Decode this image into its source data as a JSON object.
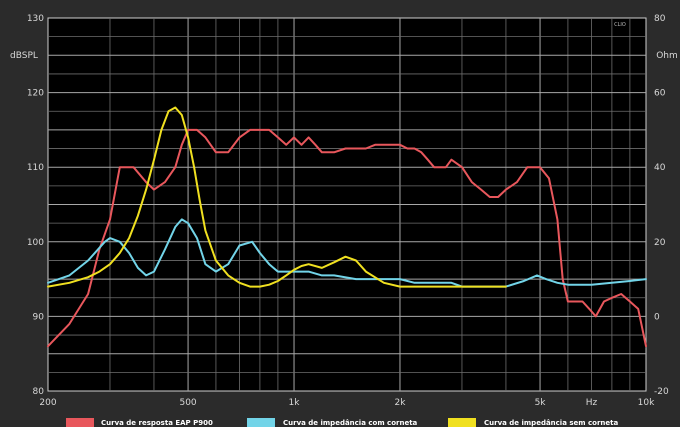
{
  "chart_data": {
    "type": "line",
    "x_scale": "log",
    "xlim": [
      200,
      10000
    ],
    "ylim_left": [
      80,
      130
    ],
    "ylim_right": [
      -20,
      80
    ],
    "left_unit": "dBSPL",
    "right_unit": "Ohm",
    "left_ticks": [
      80,
      90,
      100,
      110,
      120,
      130
    ],
    "left_tick_labels": [
      "80",
      "90",
      "100",
      "110",
      "120",
      "130"
    ],
    "right_ticks": [
      -20,
      0,
      20,
      40,
      60,
      80
    ],
    "right_tick_labels": [
      "-20",
      "0",
      "20",
      "40",
      "60",
      "80"
    ],
    "x_ticks": [
      200,
      500,
      1000,
      2000,
      5000,
      7000,
      10000
    ],
    "x_tick_labels": [
      "200",
      "500",
      "1k",
      "2k",
      "5k",
      "Hz",
      "10k"
    ],
    "grid": true,
    "watermark": "CLIO",
    "series": [
      {
        "name": "Curva de resposta EAP P900",
        "axis": "left",
        "color": "#e8575c",
        "x": [
          200,
          230,
          260,
          280,
          300,
          320,
          350,
          380,
          400,
          430,
          460,
          480,
          500,
          530,
          560,
          600,
          650,
          700,
          750,
          800,
          850,
          900,
          950,
          1000,
          1050,
          1100,
          1150,
          1200,
          1300,
          1400,
          1500,
          1600,
          1700,
          1800,
          1900,
          2000,
          2100,
          2200,
          2300,
          2400,
          2500,
          2700,
          2800,
          3000,
          3200,
          3400,
          3600,
          3800,
          4000,
          4300,
          4600,
          5000,
          5300,
          5600,
          5800,
          6000,
          6300,
          6600,
          6900,
          7200,
          7600,
          8000,
          8500,
          9000,
          9500,
          10000
        ],
        "y": [
          86,
          89,
          93,
          99,
          103,
          110,
          110,
          108,
          107,
          108,
          110,
          113,
          115,
          115,
          114,
          112,
          112,
          114,
          115,
          115,
          115,
          114,
          113,
          114,
          113,
          114,
          113,
          112,
          112,
          112.5,
          112.5,
          112.5,
          113,
          113,
          113,
          113,
          112.5,
          112.5,
          112,
          111,
          110,
          110,
          111,
          110,
          108,
          107,
          106,
          106,
          107,
          108,
          110,
          110,
          108.5,
          103,
          95,
          92,
          92,
          92,
          91,
          90,
          92,
          92.5,
          93,
          92,
          91,
          86
        ]
      },
      {
        "name": "Curva de impedância com corneta",
        "axis": "right",
        "color": "#72d4e8",
        "x": [
          200,
          230,
          260,
          290,
          300,
          320,
          340,
          360,
          380,
          400,
          430,
          460,
          480,
          500,
          530,
          560,
          600,
          650,
          700,
          760,
          800,
          850,
          900,
          950,
          1000,
          1100,
          1200,
          1300,
          1500,
          1700,
          2000,
          2200,
          2500,
          2800,
          3000,
          3300,
          3600,
          4000,
          4500,
          4900,
          5200,
          5600,
          6000,
          6500,
          7000,
          8000,
          9000,
          10000
        ],
        "y": [
          9,
          11,
          15,
          20,
          21,
          20,
          17,
          13,
          11,
          12,
          18,
          24,
          26,
          25,
          21,
          14,
          12,
          14,
          19,
          20,
          17,
          14,
          12,
          12,
          12,
          12,
          11,
          11,
          10,
          10,
          10,
          9,
          9,
          9,
          8,
          8,
          8,
          8,
          9.5,
          11,
          10,
          9,
          8.5,
          8.5,
          8.5,
          9,
          9.5,
          10
        ]
      },
      {
        "name": "Curva de impedância sem corneta",
        "axis": "right",
        "color": "#f0e020",
        "x": [
          200,
          230,
          260,
          280,
          300,
          320,
          340,
          360,
          380,
          400,
          420,
          440,
          460,
          480,
          500,
          520,
          540,
          560,
          600,
          650,
          700,
          750,
          800,
          850,
          900,
          950,
          1000,
          1050,
          1100,
          1200,
          1300,
          1400,
          1500,
          1600,
          1800,
          2000,
          2200,
          2400,
          2700,
          3000,
          3300,
          3500,
          4000
        ],
        "y": [
          8,
          9,
          10.5,
          12,
          14,
          17,
          21,
          27,
          34,
          42,
          50,
          55,
          56,
          54,
          48,
          40,
          31,
          23,
          15,
          11,
          9,
          8,
          8,
          8.5,
          9.5,
          11,
          12.5,
          13.5,
          14,
          13,
          14.5,
          16,
          15,
          12,
          9,
          8,
          8,
          8,
          8,
          8,
          8,
          8,
          8
        ]
      }
    ]
  }
}
